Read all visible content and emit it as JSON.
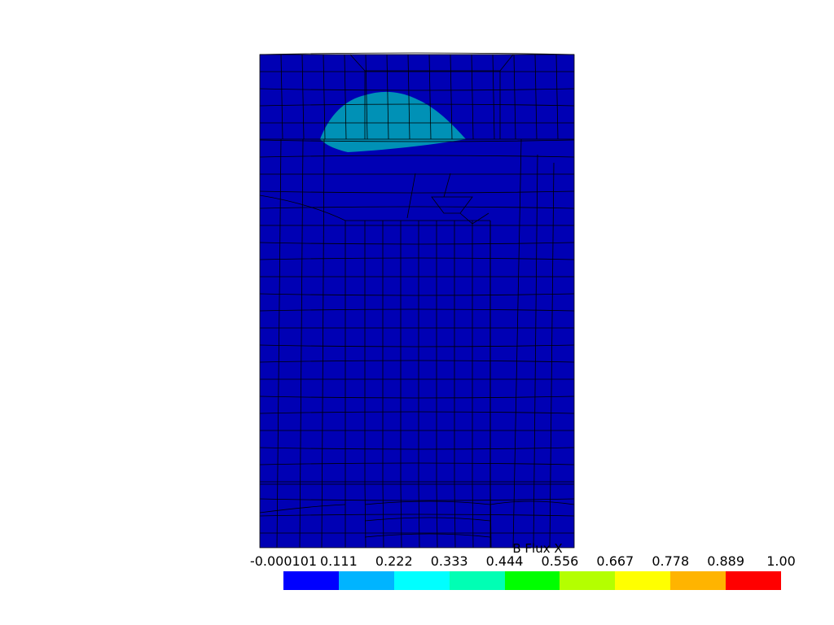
{
  "field": {
    "colors": {
      "background": "#0000b4",
      "region": "#0091b6",
      "mesh_line": "#000000"
    }
  },
  "scalar_bar": {
    "title": "B Flux X",
    "ticks": [
      "-0.000101",
      "0.111",
      "0.222",
      "0.333",
      "0.444",
      "0.556",
      "0.667",
      "0.778",
      "0.889",
      "1.00"
    ],
    "colors": [
      "#0000ff",
      "#00b4ff",
      "#00ffff",
      "#00ffb4",
      "#00ff00",
      "#b4ff00",
      "#ffff00",
      "#ffb400",
      "#ff0000"
    ]
  }
}
